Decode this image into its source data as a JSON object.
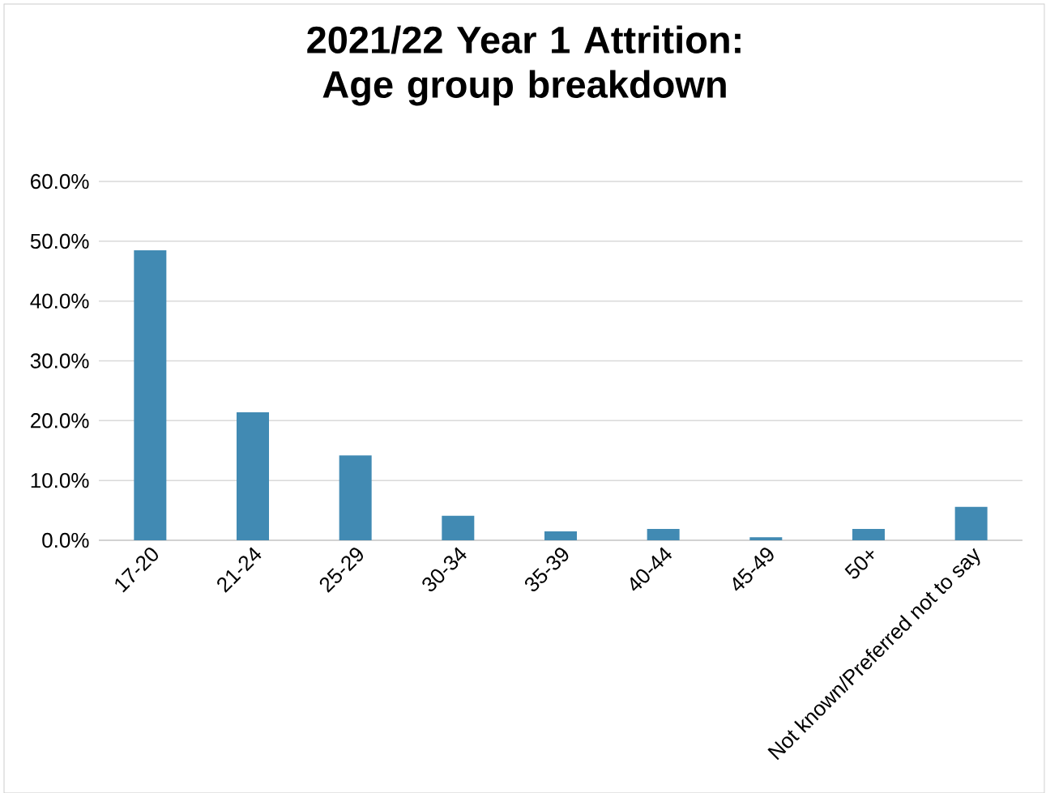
{
  "chart_data": {
    "type": "bar",
    "title": "2021/22 Year 1 Attrition: Age group breakdown",
    "categories": [
      "17-20",
      "21-24",
      "25-29",
      "30-34",
      "35-39",
      "40-44",
      "45-49",
      "50+",
      "Not known/Preferred not to say"
    ],
    "values": [
      48.5,
      21.4,
      14.2,
      4.1,
      1.5,
      1.9,
      0.5,
      1.9,
      5.6
    ],
    "color": "#418ab3",
    "ylim": [
      0,
      60
    ],
    "yticks": [
      {
        "value": 0,
        "label": "0.0%"
      },
      {
        "value": 10,
        "label": "10.0%"
      },
      {
        "value": 20,
        "label": "20.0%"
      },
      {
        "value": 30,
        "label": "30.0%"
      },
      {
        "value": 40,
        "label": "40.0%"
      },
      {
        "value": 50,
        "label": "50.0%"
      },
      {
        "value": 60,
        "label": "60.0%"
      }
    ],
    "grid": "y"
  }
}
